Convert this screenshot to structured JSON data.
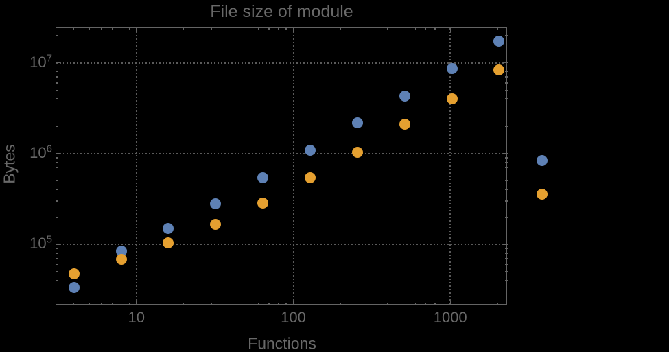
{
  "title": "File size of module",
  "x_axis": {
    "label": "Functions",
    "ticks": [
      {
        "label": "10",
        "value": 10
      },
      {
        "label": "100",
        "value": 100
      },
      {
        "label": "1000",
        "value": 1000
      }
    ]
  },
  "y_axis": {
    "label": "Bytes",
    "ticks": [
      {
        "base": "10",
        "exp": "5",
        "value": 100000
      },
      {
        "base": "10",
        "exp": "6",
        "value": 1000000
      },
      {
        "base": "10",
        "exp": "7",
        "value": 10000000
      }
    ]
  },
  "colors": {
    "background": "#000000",
    "frame": "#646464",
    "grid_dots": "#5a5a5a",
    "text": "#696969",
    "series_blue": "#5e81b5",
    "series_orange": "#e5a030"
  },
  "chart_data": {
    "type": "scatter",
    "title": "File size of module",
    "xlabel": "Functions",
    "ylabel": "Bytes",
    "x_scale": "log",
    "y_scale": "log",
    "xlim": [
      3.07,
      2313
    ],
    "ylim": [
      21500,
      24300000
    ],
    "grid": "dotted gridlines at decade ticks, frame on all four sides with inward ticks",
    "legend_position": "none",
    "x_major_ticks": [
      10,
      100,
      1000
    ],
    "y_major_ticks": [
      100000,
      1000000,
      10000000
    ],
    "note": "last point pair of each series is plotted outside the right edge of the frame (plot range clipping off)",
    "series": [
      {
        "name": "blue",
        "color": "#5e81b5",
        "x": [
          4,
          8,
          16,
          32,
          64,
          128,
          256,
          512,
          1024,
          2048,
          3860
        ],
        "y": [
          33500,
          84400,
          148600,
          281000,
          546000,
          1091000,
          2180000,
          4330000,
          8590000,
          17300000,
          835000
        ]
      },
      {
        "name": "orange",
        "color": "#e5a030",
        "x": [
          4,
          8,
          16,
          32,
          64,
          128,
          256,
          512,
          1024,
          2048,
          3860
        ],
        "y": [
          47800,
          68500,
          104000,
          165000,
          285000,
          538000,
          1036000,
          2120000,
          4040000,
          8300000,
          359000
        ]
      }
    ]
  }
}
